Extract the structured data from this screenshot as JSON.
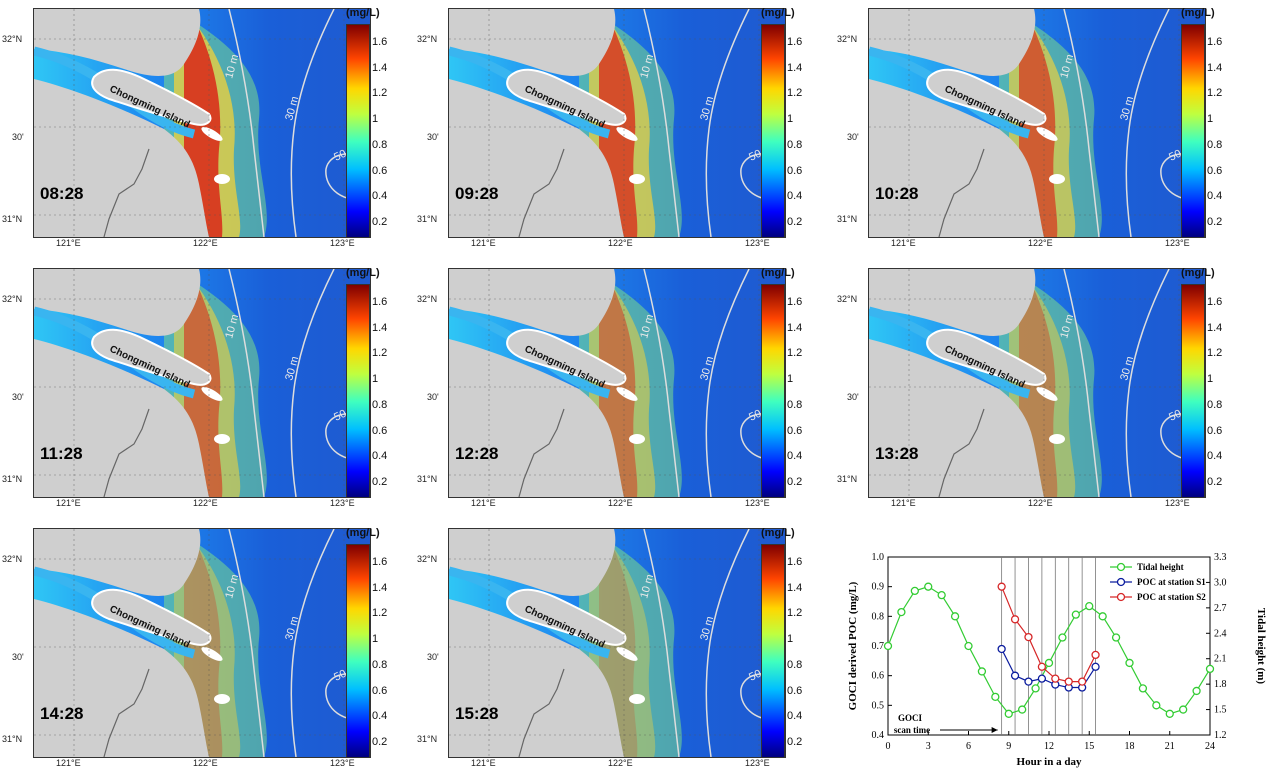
{
  "maps": {
    "unit": "(mg/L)",
    "colorbar_ticks": [
      "1.6",
      "1.4",
      "1.2",
      "1",
      "0.8",
      "0.6",
      "0.4",
      "0.2"
    ],
    "lat_labels": [
      "32°N",
      "30'",
      "31°N"
    ],
    "lon_labels": [
      "121°E",
      "122°E",
      "123°E"
    ],
    "island_label": "Chongming Island",
    "contours": [
      "10 m",
      "30 m",
      "50 m"
    ],
    "panels": [
      {
        "time": "08:28"
      },
      {
        "time": "09:28"
      },
      {
        "time": "10:28"
      },
      {
        "time": "11:28"
      },
      {
        "time": "12:28"
      },
      {
        "time": "13:28"
      },
      {
        "time": "14:28"
      },
      {
        "time": "15:28"
      }
    ]
  },
  "chart_data": {
    "type": "line",
    "xlabel": "Hour in a day",
    "ylabel": "GOCI derived POC (mg/L)",
    "y2label": "Tidal height (m)",
    "xlim": [
      0,
      24
    ],
    "ylim": [
      0.4,
      1.0
    ],
    "y2lim": [
      1.2,
      3.3
    ],
    "xticks": [
      0,
      3,
      6,
      9,
      12,
      15,
      18,
      21,
      24
    ],
    "yticks": [
      0.4,
      0.5,
      0.6,
      0.7,
      0.8,
      0.9,
      1.0
    ],
    "y2ticks": [
      1.2,
      1.5,
      1.8,
      2.1,
      2.4,
      2.7,
      3.0,
      3.3
    ],
    "annotation": "GOCI scan time",
    "scan_times": [
      8.47,
      9.47,
      10.47,
      11.47,
      12.47,
      13.47,
      14.47,
      15.47
    ],
    "series": [
      {
        "name": "Tidal height",
        "color": "#33cc33",
        "axis": "right",
        "x": [
          0,
          1,
          2,
          3,
          4,
          5,
          6,
          7,
          8,
          9,
          10,
          11,
          12,
          13,
          14,
          15,
          16,
          17,
          18,
          19,
          20,
          21,
          22,
          23,
          24
        ],
        "values": [
          2.25,
          2.65,
          2.9,
          2.95,
          2.85,
          2.6,
          2.25,
          1.95,
          1.65,
          1.45,
          1.5,
          1.75,
          2.05,
          2.35,
          2.62,
          2.72,
          2.6,
          2.35,
          2.05,
          1.75,
          1.55,
          1.45,
          1.5,
          1.72,
          1.98
        ]
      },
      {
        "name": "POC at station S1",
        "color": "#0b1c9e",
        "axis": "left",
        "x": [
          8.47,
          9.47,
          10.47,
          11.47,
          12.47,
          13.47,
          14.47,
          15.47
        ],
        "values": [
          0.69,
          0.6,
          0.58,
          0.59,
          0.57,
          0.56,
          0.56,
          0.63
        ]
      },
      {
        "name": "POC at station S2",
        "color": "#d62728",
        "axis": "left",
        "x": [
          8.47,
          9.47,
          10.47,
          11.47,
          12.47,
          13.47,
          14.47,
          15.47
        ],
        "values": [
          0.9,
          0.79,
          0.73,
          0.63,
          0.59,
          0.58,
          0.58,
          0.67
        ]
      }
    ]
  }
}
